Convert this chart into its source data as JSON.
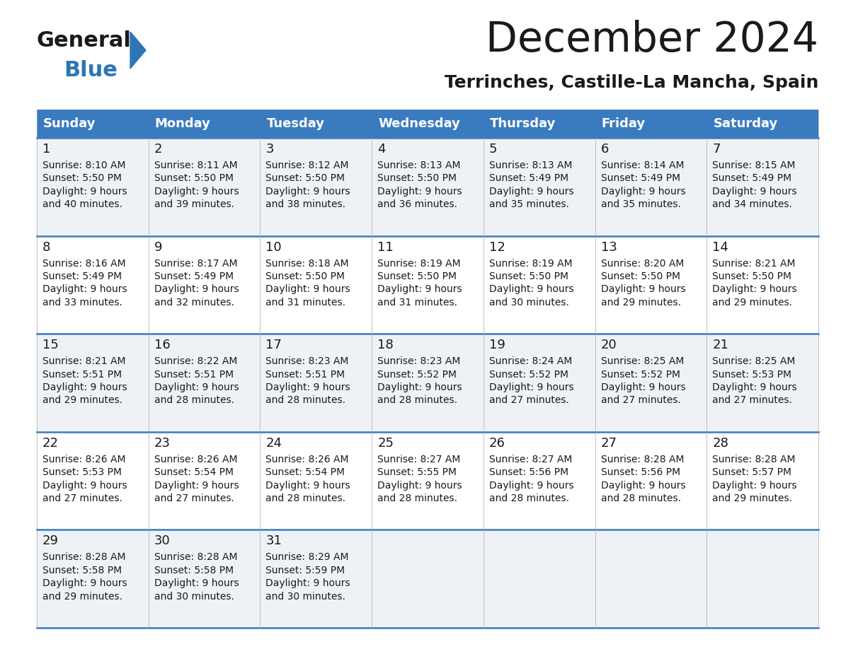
{
  "title": "December 2024",
  "subtitle": "Terrinches, Castille-La Mancha, Spain",
  "header_color": "#3a7bbf",
  "header_text_color": "#ffffff",
  "bg_color": "#ffffff",
  "cell_bg_even": "#eef2f7",
  "cell_bg_odd": "#ffffff",
  "row_separator_color": "#3a7bbf",
  "days_of_week": [
    "Sunday",
    "Monday",
    "Tuesday",
    "Wednesday",
    "Thursday",
    "Friday",
    "Saturday"
  ],
  "weeks": [
    [
      {
        "day": 1,
        "sunrise": "8:10 AM",
        "sunset": "5:50 PM",
        "daylight": "9 hours\nand 40 minutes."
      },
      {
        "day": 2,
        "sunrise": "8:11 AM",
        "sunset": "5:50 PM",
        "daylight": "9 hours\nand 39 minutes."
      },
      {
        "day": 3,
        "sunrise": "8:12 AM",
        "sunset": "5:50 PM",
        "daylight": "9 hours\nand 38 minutes."
      },
      {
        "day": 4,
        "sunrise": "8:13 AM",
        "sunset": "5:50 PM",
        "daylight": "9 hours\nand 36 minutes."
      },
      {
        "day": 5,
        "sunrise": "8:13 AM",
        "sunset": "5:49 PM",
        "daylight": "9 hours\nand 35 minutes."
      },
      {
        "day": 6,
        "sunrise": "8:14 AM",
        "sunset": "5:49 PM",
        "daylight": "9 hours\nand 35 minutes."
      },
      {
        "day": 7,
        "sunrise": "8:15 AM",
        "sunset": "5:49 PM",
        "daylight": "9 hours\nand 34 minutes."
      }
    ],
    [
      {
        "day": 8,
        "sunrise": "8:16 AM",
        "sunset": "5:49 PM",
        "daylight": "9 hours\nand 33 minutes."
      },
      {
        "day": 9,
        "sunrise": "8:17 AM",
        "sunset": "5:49 PM",
        "daylight": "9 hours\nand 32 minutes."
      },
      {
        "day": 10,
        "sunrise": "8:18 AM",
        "sunset": "5:50 PM",
        "daylight": "9 hours\nand 31 minutes."
      },
      {
        "day": 11,
        "sunrise": "8:19 AM",
        "sunset": "5:50 PM",
        "daylight": "9 hours\nand 31 minutes."
      },
      {
        "day": 12,
        "sunrise": "8:19 AM",
        "sunset": "5:50 PM",
        "daylight": "9 hours\nand 30 minutes."
      },
      {
        "day": 13,
        "sunrise": "8:20 AM",
        "sunset": "5:50 PM",
        "daylight": "9 hours\nand 29 minutes."
      },
      {
        "day": 14,
        "sunrise": "8:21 AM",
        "sunset": "5:50 PM",
        "daylight": "9 hours\nand 29 minutes."
      }
    ],
    [
      {
        "day": 15,
        "sunrise": "8:21 AM",
        "sunset": "5:51 PM",
        "daylight": "9 hours\nand 29 minutes."
      },
      {
        "day": 16,
        "sunrise": "8:22 AM",
        "sunset": "5:51 PM",
        "daylight": "9 hours\nand 28 minutes."
      },
      {
        "day": 17,
        "sunrise": "8:23 AM",
        "sunset": "5:51 PM",
        "daylight": "9 hours\nand 28 minutes."
      },
      {
        "day": 18,
        "sunrise": "8:23 AM",
        "sunset": "5:52 PM",
        "daylight": "9 hours\nand 28 minutes."
      },
      {
        "day": 19,
        "sunrise": "8:24 AM",
        "sunset": "5:52 PM",
        "daylight": "9 hours\nand 27 minutes."
      },
      {
        "day": 20,
        "sunrise": "8:25 AM",
        "sunset": "5:52 PM",
        "daylight": "9 hours\nand 27 minutes."
      },
      {
        "day": 21,
        "sunrise": "8:25 AM",
        "sunset": "5:53 PM",
        "daylight": "9 hours\nand 27 minutes."
      }
    ],
    [
      {
        "day": 22,
        "sunrise": "8:26 AM",
        "sunset": "5:53 PM",
        "daylight": "9 hours\nand 27 minutes."
      },
      {
        "day": 23,
        "sunrise": "8:26 AM",
        "sunset": "5:54 PM",
        "daylight": "9 hours\nand 27 minutes."
      },
      {
        "day": 24,
        "sunrise": "8:26 AM",
        "sunset": "5:54 PM",
        "daylight": "9 hours\nand 28 minutes."
      },
      {
        "day": 25,
        "sunrise": "8:27 AM",
        "sunset": "5:55 PM",
        "daylight": "9 hours\nand 28 minutes."
      },
      {
        "day": 26,
        "sunrise": "8:27 AM",
        "sunset": "5:56 PM",
        "daylight": "9 hours\nand 28 minutes."
      },
      {
        "day": 27,
        "sunrise": "8:28 AM",
        "sunset": "5:56 PM",
        "daylight": "9 hours\nand 28 minutes."
      },
      {
        "day": 28,
        "sunrise": "8:28 AM",
        "sunset": "5:57 PM",
        "daylight": "9 hours\nand 29 minutes."
      }
    ],
    [
      {
        "day": 29,
        "sunrise": "8:28 AM",
        "sunset": "5:58 PM",
        "daylight": "9 hours\nand 29 minutes."
      },
      {
        "day": 30,
        "sunrise": "8:28 AM",
        "sunset": "5:58 PM",
        "daylight": "9 hours\nand 30 minutes."
      },
      {
        "day": 31,
        "sunrise": "8:29 AM",
        "sunset": "5:59 PM",
        "daylight": "9 hours\nand 30 minutes."
      },
      null,
      null,
      null,
      null
    ]
  ],
  "title_fontsize": 42,
  "subtitle_fontsize": 18,
  "header_fontsize": 13,
  "day_num_fontsize": 13,
  "cell_text_fontsize": 10,
  "logo_general_color": "#1a1a1a",
  "logo_blue_color": "#2e75b6",
  "logo_triangle_color": "#2e75b6"
}
